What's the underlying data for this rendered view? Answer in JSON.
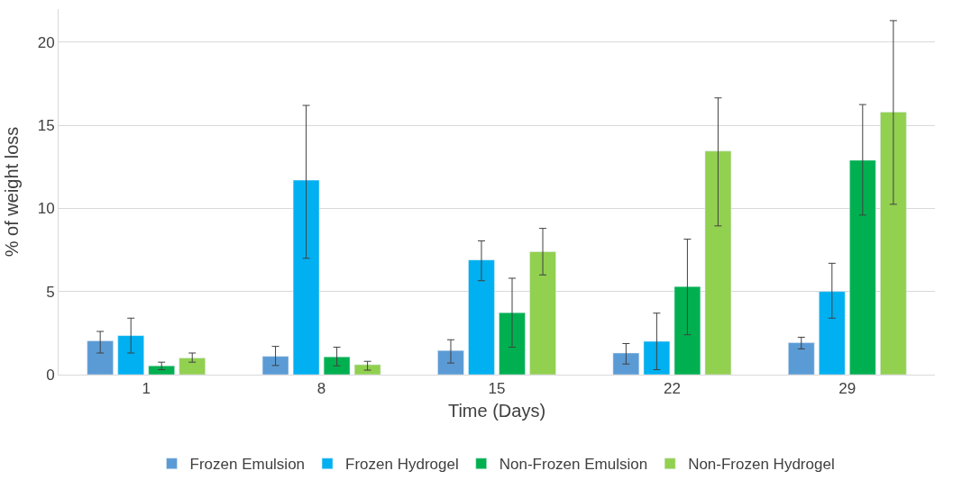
{
  "chart_data": {
    "type": "bar",
    "xlabel": "Time (Days)",
    "ylabel": "% of weight loss",
    "categories": [
      "1",
      "8",
      "15",
      "22",
      "29"
    ],
    "series": [
      {
        "name": "Frozen Emulsion",
        "color": "#5b9bd5",
        "values": [
          2.03,
          1.1,
          1.45,
          1.3,
          1.92
        ],
        "errors": [
          [
            1.3,
            2.6
          ],
          [
            0.55,
            1.7
          ],
          [
            0.7,
            2.1
          ],
          [
            0.64,
            1.87
          ],
          [
            1.55,
            2.25
          ]
        ]
      },
      {
        "name": "Frozen Hydrogel",
        "color": "#00b0f0",
        "values": [
          2.35,
          11.7,
          6.9,
          2.0,
          5.0
        ],
        "errors": [
          [
            1.3,
            3.4
          ],
          [
            7.0,
            16.2
          ],
          [
            5.65,
            8.05
          ],
          [
            0.3,
            3.7
          ],
          [
            3.4,
            6.7
          ]
        ]
      },
      {
        "name": "Non-Frozen Emulsion",
        "color": "#00b050",
        "values": [
          0.53,
          1.07,
          3.73,
          5.3,
          12.9
        ],
        "errors": [
          [
            0.3,
            0.75
          ],
          [
            0.53,
            1.65
          ],
          [
            1.65,
            5.8
          ],
          [
            2.4,
            8.15
          ],
          [
            9.6,
            16.25
          ]
        ]
      },
      {
        "name": "Non-Frozen Hydrogel",
        "color": "#92d050",
        "values": [
          1.0,
          0.6,
          7.4,
          13.45,
          15.8
        ],
        "errors": [
          [
            0.75,
            1.3
          ],
          [
            0.27,
            0.8
          ],
          [
            6.0,
            8.8
          ],
          [
            8.95,
            16.65
          ],
          [
            10.25,
            21.3
          ]
        ]
      }
    ],
    "ylim": [
      0,
      22
    ],
    "yticks": [
      0,
      5,
      10,
      15,
      20
    ],
    "grid": "y",
    "legend": "bottom"
  }
}
